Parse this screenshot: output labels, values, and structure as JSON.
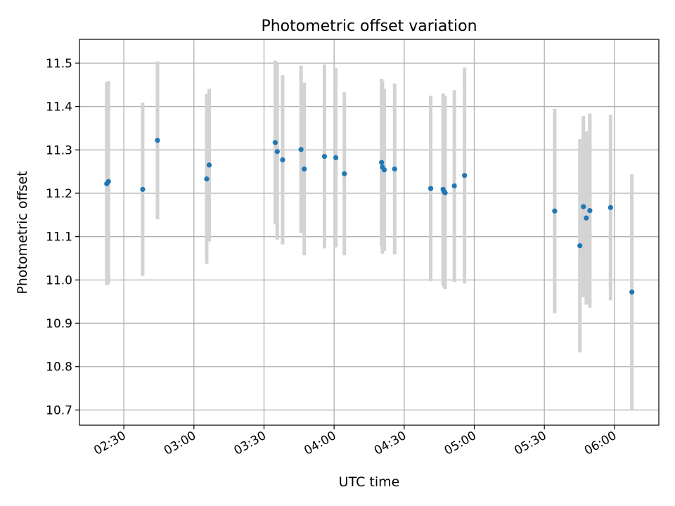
{
  "chart_data": {
    "type": "scatter",
    "title": "Photometric offset variation",
    "xlabel": "UTC time",
    "ylabel": "Photometric offset",
    "x_unit": "UTC time (HH:MM)",
    "xlim": [
      "02:11",
      "06:19"
    ],
    "ylim": [
      10.665,
      11.555
    ],
    "x_ticks": [
      "02:30",
      "03:00",
      "03:30",
      "04:00",
      "04:30",
      "05:00",
      "05:30",
      "06:00"
    ],
    "y_ticks": [
      "10.7",
      "10.8",
      "10.9",
      "11.0",
      "11.1",
      "11.2",
      "11.3",
      "11.4",
      "11.5"
    ],
    "grid": true,
    "colors": {
      "point": "#1f77b4",
      "errorbar": "#d3d3d3",
      "grid": "#b0b0b0",
      "axes": "#000000"
    },
    "series": [
      {
        "points": [
          {
            "time": "02:22:40",
            "y": 11.222,
            "lo": 10.988,
            "hi": 11.456
          },
          {
            "time": "02:23:25",
            "y": 11.227,
            "lo": 10.99,
            "hi": 11.459
          },
          {
            "time": "02:38:04",
            "y": 11.209,
            "lo": 11.009,
            "hi": 11.409
          },
          {
            "time": "02:44:24",
            "y": 11.322,
            "lo": 11.14,
            "hi": 11.504
          },
          {
            "time": "03:05:28",
            "y": 11.233,
            "lo": 11.037,
            "hi": 11.429
          },
          {
            "time": "03:06:32",
            "y": 11.265,
            "lo": 11.089,
            "hi": 11.441
          },
          {
            "time": "03:34:48",
            "y": 11.317,
            "lo": 11.128,
            "hi": 11.506
          },
          {
            "time": "03:35:40",
            "y": 11.296,
            "lo": 11.093,
            "hi": 11.499
          },
          {
            "time": "03:37:58",
            "y": 11.277,
            "lo": 11.082,
            "hi": 11.472
          },
          {
            "time": "03:45:51",
            "y": 11.301,
            "lo": 11.108,
            "hi": 11.494
          },
          {
            "time": "03:47:13",
            "y": 11.256,
            "lo": 11.057,
            "hi": 11.455
          },
          {
            "time": "03:55:52",
            "y": 11.285,
            "lo": 11.073,
            "hi": 11.497
          },
          {
            "time": "04:00:44",
            "y": 11.282,
            "lo": 11.075,
            "hi": 11.489
          },
          {
            "time": "04:04:24",
            "y": 11.245,
            "lo": 11.057,
            "hi": 11.433
          },
          {
            "time": "04:20:20",
            "y": 11.271,
            "lo": 11.078,
            "hi": 11.464
          },
          {
            "time": "04:20:42",
            "y": 11.26,
            "lo": 11.061,
            "hi": 11.459
          },
          {
            "time": "04:21:28",
            "y": 11.254,
            "lo": 11.067,
            "hi": 11.441
          },
          {
            "time": "04:25:55",
            "y": 11.256,
            "lo": 11.059,
            "hi": 11.453
          },
          {
            "time": "04:41:21",
            "y": 11.211,
            "lo": 10.997,
            "hi": 11.425
          },
          {
            "time": "04:46:39",
            "y": 11.209,
            "lo": 10.988,
            "hi": 11.43
          },
          {
            "time": "04:47:04",
            "y": 11.204,
            "lo": 10.983,
            "hi": 11.425
          },
          {
            "time": "04:47:31",
            "y": 11.201,
            "lo": 10.979,
            "hi": 11.423
          },
          {
            "time": "04:51:28",
            "y": 11.217,
            "lo": 10.996,
            "hi": 11.438
          },
          {
            "time": "04:55:50",
            "y": 11.241,
            "lo": 10.992,
            "hi": 11.49
          },
          {
            "time": "05:34:25",
            "y": 11.159,
            "lo": 10.923,
            "hi": 11.395
          },
          {
            "time": "05:45:12",
            "y": 11.079,
            "lo": 10.833,
            "hi": 11.325
          },
          {
            "time": "05:46:43",
            "y": 11.169,
            "lo": 10.96,
            "hi": 11.378
          },
          {
            "time": "05:47:57",
            "y": 11.143,
            "lo": 10.943,
            "hi": 11.343
          },
          {
            "time": "05:49:28",
            "y": 11.16,
            "lo": 10.936,
            "hi": 11.384
          },
          {
            "time": "05:58:20",
            "y": 11.167,
            "lo": 10.953,
            "hi": 11.381
          },
          {
            "time": "06:07:28",
            "y": 10.972,
            "lo": 10.7,
            "hi": 11.244
          }
        ]
      }
    ]
  }
}
